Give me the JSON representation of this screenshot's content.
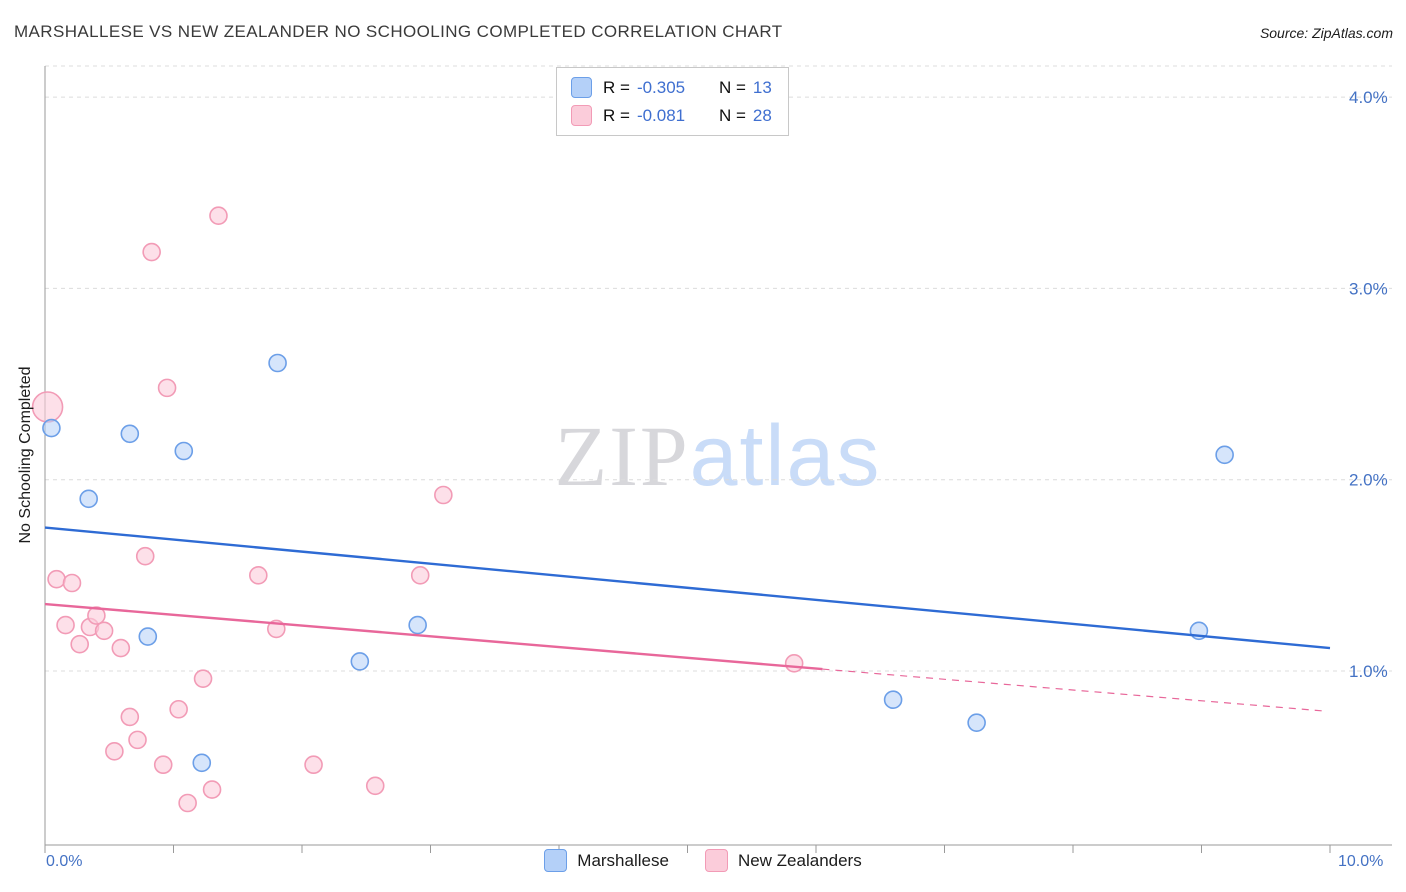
{
  "title": "MARSHALLESE VS NEW ZEALANDER NO SCHOOLING COMPLETED CORRELATION CHART",
  "source": "Source: ZipAtlas.com",
  "watermark": {
    "zip": "ZIP",
    "atlas": "atlas"
  },
  "colors": {
    "accent": "#4472C4",
    "grid": "#dcdcdc",
    "axis": "#9a9a9a"
  },
  "legend_box": {
    "rows": [
      {
        "series": "Marshallese",
        "r_label": "R =",
        "r_value": "-0.305",
        "n_label": "N =",
        "n_value": "13"
      },
      {
        "series": "New Zealanders",
        "r_label": "R =",
        "r_value": "-0.081",
        "n_label": "N =",
        "n_value": "28"
      }
    ]
  },
  "bottom_legend": [
    {
      "label": "Marshallese"
    },
    {
      "label": "New Zealanders"
    }
  ],
  "axes": {
    "y_label": "No Schooling Completed",
    "y_ticks": [
      {
        "value": 4,
        "label": "4.0%"
      },
      {
        "value": 3,
        "label": "3.0%"
      },
      {
        "value": 2,
        "label": "2.0%"
      },
      {
        "value": 1,
        "label": "1.0%"
      }
    ],
    "x_ticks": [
      {
        "value": 0,
        "label": "0.0%"
      },
      {
        "value": 10,
        "label": "10.0%"
      }
    ],
    "x_range": [
      0,
      10
    ],
    "y_range": [
      0,
      4.17
    ],
    "grid": "dashed-horizontal",
    "legend_position": "top-center"
  },
  "chart_data": {
    "type": "scatter",
    "x_unit": "percent",
    "y_unit": "percent",
    "series": [
      {
        "name": "Marshallese",
        "point_name": "marshallese-point",
        "fill": "#B4D0F8",
        "stroke": "#6C9FE8",
        "fill_opacity": 0.55,
        "radius": 8.5,
        "points": [
          [
            0.05,
            2.27
          ],
          [
            0.34,
            1.9
          ],
          [
            0.66,
            2.24
          ],
          [
            0.8,
            1.18
          ],
          [
            1.08,
            2.15
          ],
          [
            1.22,
            0.52
          ],
          [
            1.81,
            2.61
          ],
          [
            2.45,
            1.05
          ],
          [
            2.9,
            1.24
          ],
          [
            6.6,
            0.85
          ],
          [
            7.25,
            0.73
          ],
          [
            8.98,
            1.21
          ],
          [
            9.18,
            2.13
          ]
        ]
      },
      {
        "name": "New Zealanders",
        "point_name": "new-zealander-point",
        "fill": "#FBCCDA",
        "stroke": "#F29BB6",
        "fill_opacity": 0.6,
        "radius": 8.5,
        "points": [
          [
            0.02,
            2.38,
            15
          ],
          [
            0.09,
            1.48
          ],
          [
            0.21,
            1.46
          ],
          [
            0.16,
            1.24
          ],
          [
            0.27,
            1.14
          ],
          [
            0.35,
            1.23
          ],
          [
            0.4,
            1.29
          ],
          [
            0.46,
            1.21
          ],
          [
            0.54,
            0.58
          ],
          [
            0.59,
            1.12
          ],
          [
            0.66,
            0.76
          ],
          [
            0.72,
            0.64
          ],
          [
            0.78,
            1.6
          ],
          [
            0.83,
            3.19
          ],
          [
            0.92,
            0.51
          ],
          [
            0.95,
            2.48
          ],
          [
            1.04,
            0.8
          ],
          [
            1.11,
            0.31
          ],
          [
            1.23,
            0.96
          ],
          [
            1.3,
            0.38
          ],
          [
            1.35,
            3.38
          ],
          [
            1.66,
            1.5
          ],
          [
            1.8,
            1.22
          ],
          [
            2.09,
            0.51
          ],
          [
            2.57,
            0.4
          ],
          [
            2.92,
            1.5
          ],
          [
            3.1,
            1.92
          ],
          [
            5.83,
            1.04
          ]
        ]
      }
    ],
    "trend_lines": [
      {
        "name": "marshallese",
        "color": "#2E6BD4",
        "segments": [
          {
            "x": [
              0,
              10
            ],
            "y": [
              1.75,
              1.12
            ],
            "dashed": false
          }
        ]
      },
      {
        "name": "new-zealanders",
        "color": "#E8679A",
        "segments": [
          {
            "x": [
              0,
              6.05
            ],
            "y": [
              1.35,
              1.01
            ],
            "dashed": false
          },
          {
            "x": [
              6.05,
              9.97
            ],
            "y": [
              1.01,
              0.79
            ],
            "dashed": true
          }
        ]
      }
    ]
  }
}
